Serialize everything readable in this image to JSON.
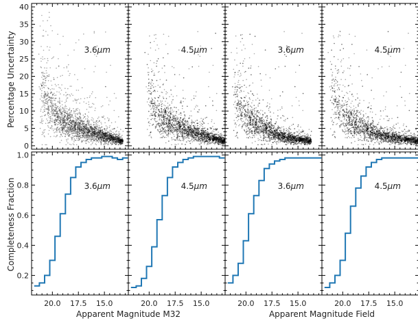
{
  "figure": {
    "ylabel_top": "Percentage Uncertainty",
    "ylabel_bottom": "Completeness Fraction",
    "xlabel_left": "Apparent Magnitude M32",
    "xlabel_right": "Apparent Magnitude Field",
    "colors": {
      "step": "#1f77b4",
      "scatter": "#000000",
      "axes": "#000000"
    }
  },
  "chart_data": [
    {
      "type": "scatter",
      "panel": "M32 3.6µm",
      "label_prefix": "3.6",
      "label_suffix": "μm",
      "xlim": [
        22.0,
        12.7
      ],
      "ylim": [
        -1,
        41
      ],
      "yticks": [
        0,
        5,
        10,
        15,
        20,
        25,
        30,
        35,
        40
      ],
      "xticks": [
        20.0,
        17.5,
        15.0
      ],
      "density_description": "dense cloud of sources, uncertainty rising toward faint magnitudes",
      "envelope": [
        [
          21.5,
          40
        ],
        [
          20.6,
          28
        ],
        [
          20.0,
          22
        ],
        [
          19.5,
          18
        ],
        [
          19.0,
          15
        ],
        [
          18.0,
          12
        ],
        [
          17.0,
          10
        ],
        [
          16.0,
          8
        ],
        [
          15.0,
          6
        ],
        [
          14.0,
          4
        ],
        [
          13.5,
          3
        ]
      ]
    },
    {
      "type": "scatter",
      "panel": "M32 4.5µm",
      "label_prefix": "4.5",
      "label_suffix": "μm",
      "xlim": [
        22.0,
        12.7
      ],
      "ylim": [
        -1,
        41
      ],
      "yticks": [
        0,
        5,
        10,
        15,
        20,
        25,
        30,
        35,
        40
      ],
      "xticks": [
        20.0,
        17.5,
        15.0
      ],
      "envelope": [
        [
          20.5,
          40
        ],
        [
          20.0,
          30
        ],
        [
          19.5,
          22
        ],
        [
          19.0,
          18
        ],
        [
          18.0,
          14
        ],
        [
          17.0,
          11
        ],
        [
          16.0,
          9
        ],
        [
          15.0,
          7
        ],
        [
          14.0,
          5
        ],
        [
          13.0,
          3
        ]
      ]
    },
    {
      "type": "scatter",
      "panel": "Field 3.6µm",
      "label_prefix": "3.6",
      "label_suffix": "μm",
      "xlim": [
        22.0,
        12.7
      ],
      "ylim": [
        -1,
        41
      ],
      "yticks": [
        0,
        5,
        10,
        15,
        20,
        25,
        30,
        35,
        40
      ],
      "xticks": [
        20.0,
        17.5,
        15.0
      ],
      "envelope": [
        [
          21.5,
          38
        ],
        [
          21.0,
          28
        ],
        [
          20.5,
          22
        ],
        [
          20.0,
          18
        ],
        [
          19.0,
          13
        ],
        [
          18.0,
          10
        ],
        [
          17.0,
          7
        ],
        [
          16.0,
          5
        ],
        [
          15.0,
          4
        ],
        [
          14.0,
          3
        ]
      ]
    },
    {
      "type": "scatter",
      "panel": "Field 4.5µm",
      "label_prefix": "4.5",
      "label_suffix": "μm",
      "xlim": [
        22.0,
        12.7
      ],
      "ylim": [
        -1,
        41
      ],
      "yticks": [
        0,
        5,
        10,
        15,
        20,
        25,
        30,
        35,
        40
      ],
      "xticks": [
        20.0,
        17.5,
        15.0
      ],
      "envelope": [
        [
          21.5,
          40
        ],
        [
          21.0,
          32
        ],
        [
          20.5,
          24
        ],
        [
          20.0,
          19
        ],
        [
          19.0,
          14
        ],
        [
          18.0,
          11
        ],
        [
          17.0,
          8
        ],
        [
          16.0,
          6
        ],
        [
          15.0,
          5
        ],
        [
          13.0,
          3
        ]
      ]
    },
    {
      "type": "line",
      "style": "step",
      "panel": "M32 3.6µm completeness",
      "label_prefix": "3.6",
      "label_suffix": "μm",
      "xlim": [
        22.0,
        12.7
      ],
      "ylim": [
        0.07,
        1.02
      ],
      "yticks": [
        0.2,
        0.4,
        0.6,
        0.8,
        1.0
      ],
      "xticks": [
        20.0,
        17.5,
        15.0
      ],
      "x": [
        21.5,
        21.0,
        20.5,
        20.0,
        19.5,
        19.0,
        18.5,
        18.0,
        17.5,
        17.0,
        16.5,
        16.0,
        15.5,
        15.0,
        14.5,
        14.0,
        13.5,
        13.0
      ],
      "y": [
        0.13,
        0.15,
        0.2,
        0.3,
        0.46,
        0.61,
        0.74,
        0.85,
        0.92,
        0.95,
        0.97,
        0.98,
        0.98,
        0.99,
        0.99,
        0.98,
        0.97,
        0.98
      ]
    },
    {
      "type": "line",
      "style": "step",
      "panel": "M32 4.5µm completeness",
      "label_prefix": "4.5",
      "label_suffix": "μm",
      "xlim": [
        22.0,
        12.7
      ],
      "ylim": [
        0.07,
        1.02
      ],
      "yticks": [
        0.2,
        0.4,
        0.6,
        0.8,
        1.0
      ],
      "xticks": [
        20.0,
        17.5,
        15.0
      ],
      "x": [
        21.5,
        21.0,
        20.5,
        20.0,
        19.5,
        19.0,
        18.5,
        18.0,
        17.5,
        17.0,
        16.5,
        16.0,
        15.5,
        15.0,
        14.5,
        14.0,
        13.5,
        13.0
      ],
      "y": [
        0.12,
        0.13,
        0.18,
        0.26,
        0.39,
        0.57,
        0.73,
        0.85,
        0.92,
        0.95,
        0.97,
        0.98,
        0.99,
        0.99,
        0.99,
        0.99,
        0.99,
        0.98
      ]
    },
    {
      "type": "line",
      "style": "step",
      "panel": "Field 3.6µm completeness",
      "label_prefix": "3.6",
      "label_suffix": "μm",
      "xlim": [
        22.0,
        12.7
      ],
      "ylim": [
        0.07,
        1.02
      ],
      "yticks": [
        0.2,
        0.4,
        0.6,
        0.8,
        1.0
      ],
      "xticks": [
        20.0,
        17.5,
        15.0
      ],
      "x": [
        21.5,
        21.0,
        20.5,
        20.0,
        19.5,
        19.0,
        18.5,
        18.0,
        17.5,
        17.0,
        16.5,
        16.0,
        15.5,
        15.0,
        14.5,
        14.0,
        13.5,
        13.0
      ],
      "y": [
        0.15,
        0.2,
        0.28,
        0.43,
        0.61,
        0.73,
        0.83,
        0.91,
        0.94,
        0.96,
        0.97,
        0.98,
        0.98,
        0.98,
        0.98,
        0.98,
        0.98,
        0.98
      ]
    },
    {
      "type": "line",
      "style": "step",
      "panel": "Field 4.5µm completeness",
      "label_prefix": "4.5",
      "label_suffix": "μm",
      "xlim": [
        22.0,
        12.7
      ],
      "ylim": [
        0.07,
        1.02
      ],
      "yticks": [
        0.2,
        0.4,
        0.6,
        0.8,
        1.0
      ],
      "xticks": [
        20.0,
        17.5,
        15.0
      ],
      "x": [
        21.5,
        21.0,
        20.5,
        20.0,
        19.5,
        19.0,
        18.5,
        18.0,
        17.5,
        17.0,
        16.5,
        16.0,
        15.5,
        15.0,
        14.5,
        14.0,
        13.5,
        13.0
      ],
      "y": [
        0.12,
        0.15,
        0.2,
        0.3,
        0.48,
        0.66,
        0.78,
        0.86,
        0.92,
        0.95,
        0.97,
        0.98,
        0.98,
        0.98,
        0.98,
        0.98,
        0.98,
        0.98
      ]
    }
  ]
}
